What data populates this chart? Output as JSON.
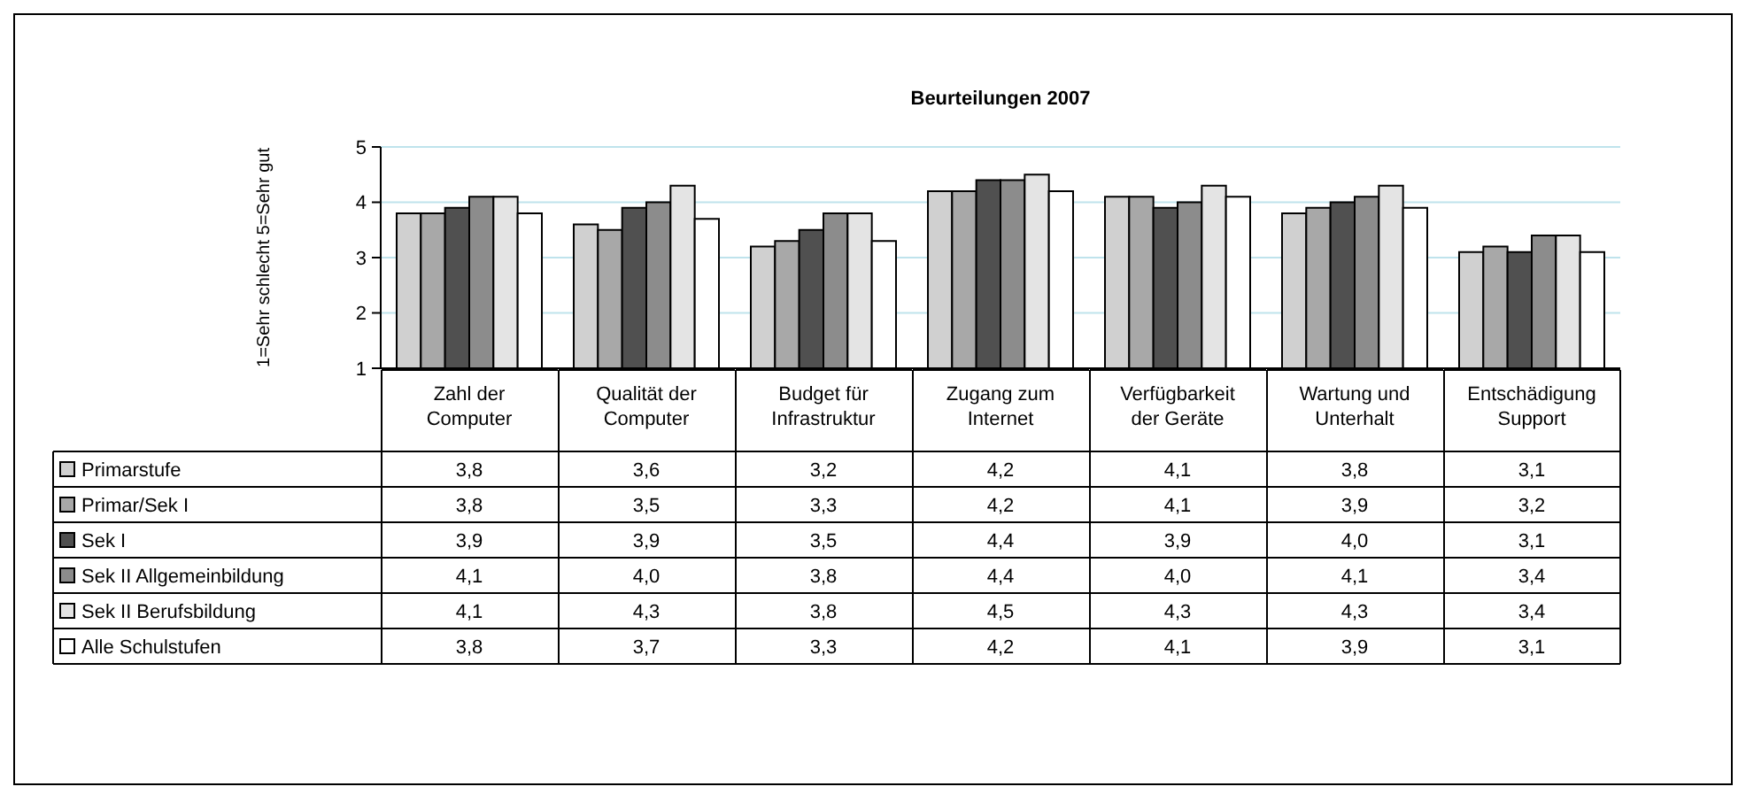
{
  "chart_data": {
    "type": "bar",
    "title": "Beurteilungen 2007",
    "ylabel": "1=Sehr schlecht 5=Sehr gut",
    "categories": [
      "Zahl der Computer",
      "Qualität der Computer",
      "Budget für Infrastruktur",
      "Zugang zum Internet",
      "Verfügbarkeit der Geräte",
      "Wartung und Unterhalt",
      "Entschädigung Support"
    ],
    "series": [
      {
        "name": "Primarstufe",
        "color": "#d0d0d0",
        "values": [
          3.8,
          3.6,
          3.2,
          4.2,
          4.1,
          3.8,
          3.1
        ],
        "value_labels": [
          "3,8",
          "3,6",
          "3,2",
          "4,2",
          "4,1",
          "3,8",
          "3,1"
        ]
      },
      {
        "name": "Primar/Sek I",
        "color": "#a8a8a8",
        "values": [
          3.8,
          3.5,
          3.3,
          4.2,
          4.1,
          3.9,
          3.2
        ],
        "value_labels": [
          "3,8",
          "3,5",
          "3,3",
          "4,2",
          "4,1",
          "3,9",
          "3,2"
        ]
      },
      {
        "name": "Sek I",
        "color": "#505050",
        "values": [
          3.9,
          3.9,
          3.5,
          4.4,
          3.9,
          4.0,
          3.1
        ],
        "value_labels": [
          "3,9",
          "3,9",
          "3,5",
          "4,4",
          "3,9",
          "4,0",
          "3,1"
        ]
      },
      {
        "name": "Sek II Allgemeinbildung",
        "color": "#8c8c8c",
        "values": [
          4.1,
          4.0,
          3.8,
          4.4,
          4.0,
          4.1,
          3.4
        ],
        "value_labels": [
          "4,1",
          "4,0",
          "3,8",
          "4,4",
          "4,0",
          "4,1",
          "3,4"
        ]
      },
      {
        "name": "Sek II Berufsbildung",
        "color": "#e4e4e4",
        "values": [
          4.1,
          4.3,
          3.8,
          4.5,
          4.3,
          4.3,
          3.4
        ],
        "value_labels": [
          "4,1",
          "4,3",
          "3,8",
          "4,5",
          "4,3",
          "4,3",
          "3,4"
        ]
      },
      {
        "name": "Alle Schulstufen",
        "color": "#ffffff",
        "values": [
          3.8,
          3.7,
          3.3,
          4.2,
          4.1,
          3.9,
          3.1
        ],
        "value_labels": [
          "3,8",
          "3,7",
          "3,3",
          "4,2",
          "4,1",
          "3,9",
          "3,1"
        ]
      }
    ],
    "ylim": [
      1,
      5
    ],
    "yticks": [
      1,
      2,
      3,
      4,
      5
    ],
    "grid": "y",
    "legend": "bottom left"
  }
}
